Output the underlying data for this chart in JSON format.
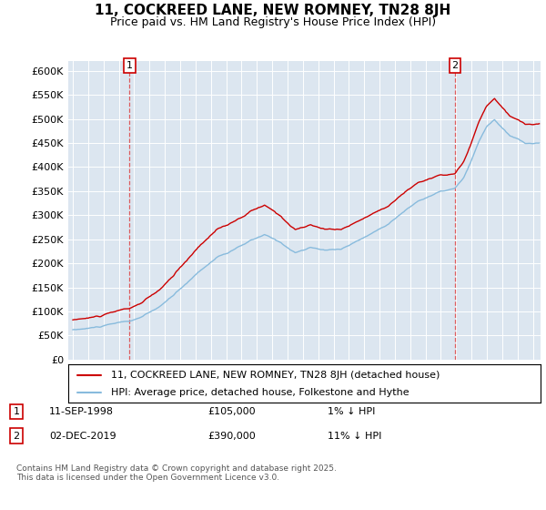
{
  "title": "11, COCKREED LANE, NEW ROMNEY, TN28 8JH",
  "subtitle": "Price paid vs. HM Land Registry's House Price Index (HPI)",
  "plot_bg_color": "#dce6f0",
  "ylim": [
    0,
    620000
  ],
  "yticks": [
    0,
    50000,
    100000,
    150000,
    200000,
    250000,
    300000,
    350000,
    400000,
    450000,
    500000,
    550000,
    600000
  ],
  "xlim_start": 1994.7,
  "xlim_end": 2025.5,
  "sale1_x": 1998.69,
  "sale1_y": 105000,
  "sale2_x": 2019.92,
  "sale2_y": 390000,
  "legend_line1": "11, COCKREED LANE, NEW ROMNEY, TN28 8JH (detached house)",
  "legend_line2": "HPI: Average price, detached house, Folkestone and Hythe",
  "ann1_date": "11-SEP-1998",
  "ann1_price": "£105,000",
  "ann1_hpi": "1% ↓ HPI",
  "ann2_date": "02-DEC-2019",
  "ann2_price": "£390,000",
  "ann2_hpi": "11% ↓ HPI",
  "footer": "Contains HM Land Registry data © Crown copyright and database right 2025.\nThis data is licensed under the Open Government Licence v3.0.",
  "line_color_price": "#cc0000",
  "line_color_hpi": "#88bbdd",
  "grid_color": "#ffffff",
  "sale_line_color": "#dd4444"
}
